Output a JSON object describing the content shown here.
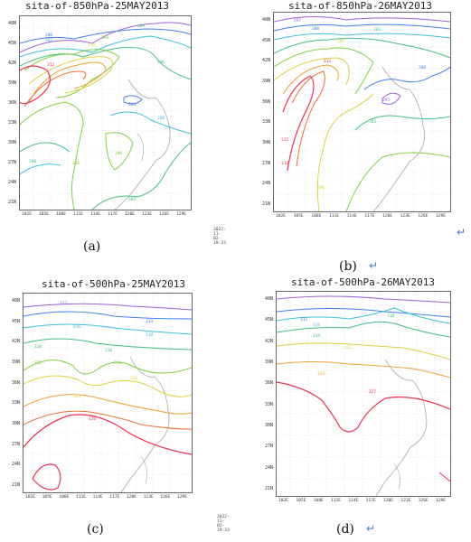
{
  "panels": [
    {
      "id": "a",
      "title": "sita-of-850hPa-25MAY2013",
      "caption": "(a)",
      "show_arrow": false
    },
    {
      "id": "b",
      "title": "sita-of-850hPa-26MAY2013",
      "caption": "(b)",
      "show_arrow": true
    },
    {
      "id": "c",
      "title": "sita-of-500hPa-25MAY2013",
      "caption": "(c)",
      "show_arrow": false
    },
    {
      "id": "d",
      "title": "sita-of-500hPa-26MAY2013",
      "caption": "(d)",
      "show_arrow": true
    }
  ],
  "lat_ticks": [
    "48N",
    "45N",
    "42N",
    "39N",
    "36N",
    "33N",
    "30N",
    "27N",
    "24N",
    "21N"
  ],
  "lon_ticks": [
    "102E",
    "105E",
    "108E",
    "111E",
    "114E",
    "117E",
    "120E",
    "123E",
    "126E",
    "129E"
  ],
  "timestamp": "2022-11-02-19:33",
  "arrow_glyph": "↵",
  "contour_labels": {
    "a": [
      "309",
      "306",
      "303",
      "312",
      "310",
      "300",
      "306",
      "304",
      "308",
      "300",
      "306",
      "300",
      "304"
    ],
    "b": [
      "297",
      "300",
      "306",
      "303",
      "312",
      "300",
      "297",
      "303",
      "315",
      "312",
      "306"
    ],
    "c": [
      "312",
      "314",
      "316",
      "318",
      "320",
      "322",
      "324",
      "326",
      "318",
      "320",
      "322"
    ],
    "d": [
      "312",
      "316",
      "318",
      "319",
      "321",
      "324",
      "327"
    ]
  },
  "colors": {
    "c1": "#a060e0",
    "c2": "#4080f0",
    "c3": "#40c0e0",
    "c4": "#40c080",
    "c5": "#80d040",
    "c6": "#e0d040",
    "c7": "#f0a030",
    "c8": "#f07030",
    "c9": "#f03050",
    "coast": "#aaaaaa"
  }
}
